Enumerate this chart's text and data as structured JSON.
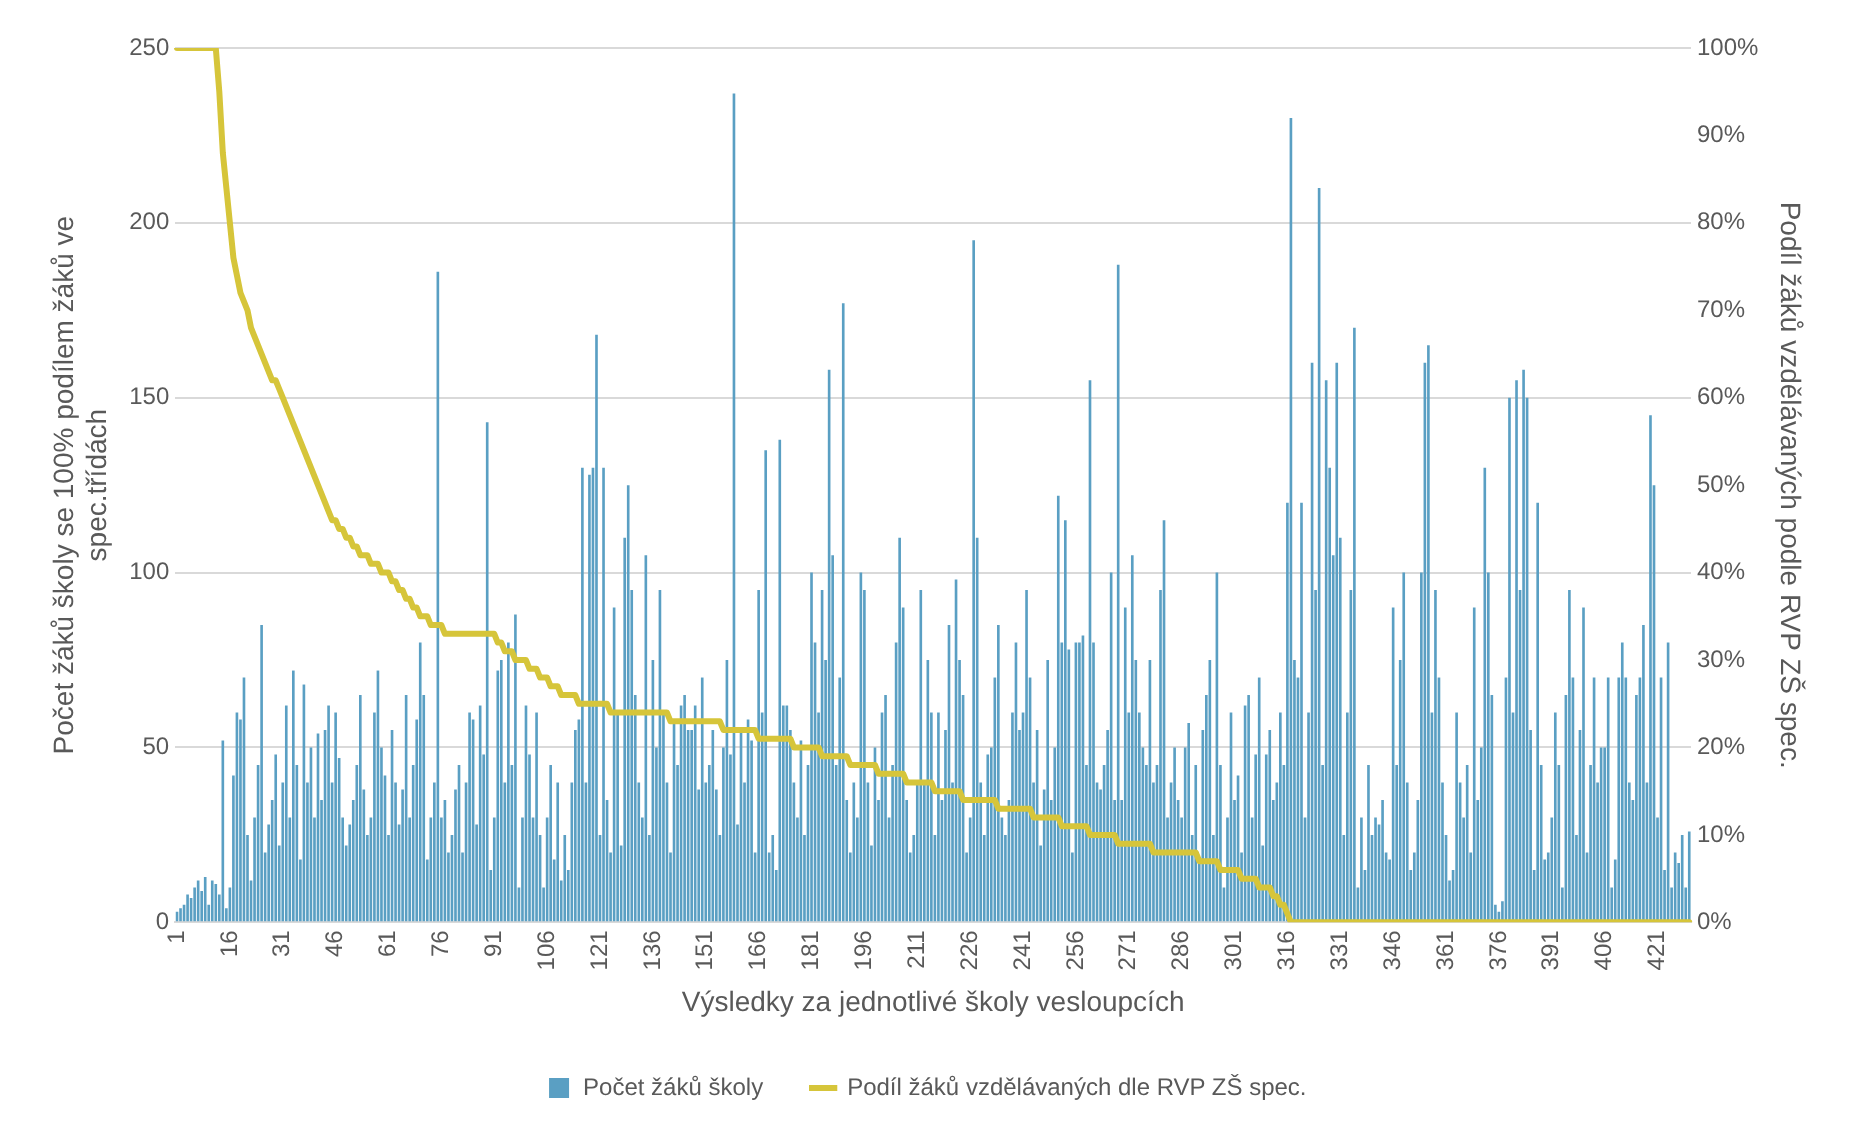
{
  "chart_data": {
    "type": "bar",
    "xlabel": "Výsledky za jednotlivé školy vesloupcích",
    "ylabel": "Počet žáků školy se 100% podílem žáků ve spec.třídách",
    "y2label": "Podíl žáků vzdělávaných podle RVP ZŠ spec.",
    "categories": [
      "1",
      null,
      null,
      null,
      null,
      null,
      null,
      null,
      null,
      null,
      null,
      null,
      null,
      null,
      null,
      "16",
      null,
      null,
      null,
      null,
      null,
      null,
      null,
      null,
      null,
      null,
      null,
      null,
      null,
      null,
      "31",
      null,
      null,
      null,
      null,
      null,
      null,
      null,
      null,
      null,
      null,
      null,
      null,
      null,
      null,
      "46",
      null,
      null,
      null,
      null,
      null,
      null,
      null,
      null,
      null,
      null,
      null,
      null,
      null,
      null,
      "61",
      null,
      null,
      null,
      null,
      null,
      null,
      null,
      null,
      null,
      null,
      null,
      null,
      null,
      null,
      "76",
      null,
      null,
      null,
      null,
      null,
      null,
      null,
      null,
      null,
      null,
      null,
      null,
      null,
      null,
      "91",
      null,
      null,
      null,
      null,
      null,
      null,
      null,
      null,
      null,
      null,
      null,
      null,
      null,
      null,
      "106",
      null,
      null,
      null,
      null,
      null,
      null,
      null,
      null,
      null,
      null,
      null,
      null,
      null,
      null,
      "121",
      null,
      null,
      null,
      null,
      null,
      null,
      null,
      null,
      null,
      null,
      null,
      null,
      null,
      null,
      "136",
      null,
      null,
      null,
      null,
      null,
      null,
      null,
      null,
      null,
      null,
      null,
      null,
      null,
      null,
      "151",
      null,
      null,
      null,
      null,
      null,
      null,
      null,
      null,
      null,
      null,
      null,
      null,
      null,
      null,
      "166",
      null,
      null,
      null,
      null,
      null,
      null,
      null,
      null,
      null,
      null,
      null,
      null,
      null,
      null,
      "181",
      null,
      null,
      null,
      null,
      null,
      null,
      null,
      null,
      null,
      null,
      null,
      null,
      null,
      null,
      "196",
      null,
      null,
      null,
      null,
      null,
      null,
      null,
      null,
      null,
      null,
      null,
      null,
      null,
      null,
      "211",
      null,
      null,
      null,
      null,
      null,
      null,
      null,
      null,
      null,
      null,
      null,
      null,
      null,
      null,
      "226",
      null,
      null,
      null,
      null,
      null,
      null,
      null,
      null,
      null,
      null,
      null,
      null,
      null,
      null,
      "241",
      null,
      null,
      null,
      null,
      null,
      null,
      null,
      null,
      null,
      null,
      null,
      null,
      null,
      null,
      "256",
      null,
      null,
      null,
      null,
      null,
      null,
      null,
      null,
      null,
      null,
      null,
      null,
      null,
      null,
      "271",
      null,
      null,
      null,
      null,
      null,
      null,
      null,
      null,
      null,
      null,
      null,
      null,
      null,
      null,
      "286",
      null,
      null,
      null,
      null,
      null,
      null,
      null,
      null,
      null,
      null,
      null,
      null,
      null,
      null,
      "301",
      null,
      null,
      null,
      null,
      null,
      null,
      null,
      null,
      null,
      null,
      null,
      null,
      null,
      null,
      "316",
      null,
      null,
      null,
      null,
      null,
      null,
      null,
      null,
      null,
      null,
      null,
      null,
      null,
      null,
      "331",
      null,
      null,
      null,
      null,
      null,
      null,
      null,
      null,
      null,
      null,
      null,
      null,
      null,
      null,
      "346",
      null,
      null,
      null,
      null,
      null,
      null,
      null,
      null,
      null,
      null,
      null,
      null,
      null,
      null,
      "361",
      null,
      null,
      null,
      null,
      null,
      null,
      null,
      null,
      null,
      null,
      null,
      null,
      null,
      null,
      "376",
      null,
      null,
      null,
      null,
      null,
      null,
      null,
      null,
      null,
      null,
      null,
      null,
      null,
      null,
      "391",
      null,
      null,
      null,
      null,
      null,
      null,
      null,
      null,
      null,
      null,
      null,
      null,
      null,
      null,
      "406",
      null,
      null,
      null,
      null,
      null,
      null,
      null,
      null,
      null,
      null,
      null,
      null,
      null,
      null,
      "421",
      null,
      null,
      null,
      null,
      null,
      null,
      null,
      null,
      null
    ],
    "series": [
      {
        "name": "Počet žáků školy",
        "color": "#5a9fc3",
        "values": [
          3,
          4,
          5,
          8,
          7,
          10,
          12,
          9,
          13,
          5,
          12,
          11,
          8,
          52,
          4,
          10,
          42,
          60,
          58,
          70,
          25,
          12,
          30,
          45,
          85,
          20,
          28,
          35,
          48,
          22,
          40,
          62,
          30,
          72,
          45,
          18,
          68,
          40,
          50,
          30,
          54,
          35,
          55,
          62,
          40,
          60,
          47,
          30,
          22,
          28,
          35,
          45,
          65,
          38,
          25,
          30,
          60,
          72,
          50,
          42,
          25,
          55,
          40,
          28,
          38,
          65,
          30,
          45,
          58,
          80,
          65,
          18,
          30,
          40,
          186,
          30,
          35,
          20,
          25,
          38,
          45,
          20,
          40,
          60,
          58,
          28,
          62,
          48,
          143,
          15,
          30,
          72,
          75,
          40,
          80,
          45,
          88,
          10,
          30,
          62,
          48,
          30,
          60,
          25,
          10,
          30,
          45,
          18,
          40,
          12,
          25,
          15,
          40,
          55,
          58,
          130,
          40,
          128,
          130,
          168,
          25,
          130,
          35,
          20,
          90,
          60,
          22,
          110,
          125,
          95,
          65,
          40,
          30,
          105,
          25,
          75,
          50,
          95,
          60,
          40,
          20,
          58,
          45,
          62,
          65,
          55,
          55,
          62,
          38,
          70,
          40,
          45,
          55,
          38,
          25,
          50,
          75,
          48,
          237,
          28,
          55,
          40,
          58,
          52,
          20,
          95,
          60,
          135,
          20,
          25,
          15,
          138,
          62,
          62,
          55,
          40,
          30,
          52,
          25,
          45,
          100,
          80,
          60,
          95,
          75,
          158,
          105,
          45,
          70,
          177,
          35,
          20,
          40,
          30,
          100,
          95,
          40,
          22,
          50,
          35,
          60,
          65,
          30,
          45,
          80,
          110,
          90,
          35,
          20,
          25,
          40,
          95,
          40,
          75,
          60,
          25,
          60,
          35,
          55,
          85,
          40,
          98,
          75,
          65,
          20,
          30,
          195,
          110,
          40,
          25,
          48,
          50,
          70,
          85,
          30,
          25,
          35,
          60,
          80,
          55,
          60,
          95,
          70,
          40,
          55,
          22,
          38,
          75,
          35,
          50,
          122,
          80,
          115,
          78,
          20,
          80,
          80,
          82,
          45,
          155,
          80,
          40,
          38,
          45,
          55,
          100,
          35,
          188,
          35,
          90,
          60,
          105,
          75,
          60,
          50,
          45,
          75,
          40,
          45,
          95,
          115,
          30,
          40,
          50,
          35,
          30,
          50,
          57,
          25,
          45,
          18,
          55,
          65,
          75,
          25,
          100,
          45,
          10,
          30,
          60,
          35,
          42,
          20,
          62,
          65,
          30,
          48,
          70,
          22,
          48,
          55,
          35,
          40,
          60,
          45,
          120,
          230,
          75,
          70,
          120,
          30,
          60,
          160,
          95,
          210,
          45,
          155,
          130,
          105,
          160,
          110,
          25,
          60,
          95,
          170,
          10,
          30,
          15,
          45,
          25,
          30,
          28,
          35,
          20,
          18,
          90,
          45,
          75,
          100,
          40,
          15,
          20,
          35,
          100,
          160,
          165,
          60,
          95,
          70,
          40,
          25,
          12,
          15,
          60,
          40,
          30,
          45,
          20,
          90,
          35,
          50,
          130,
          100,
          65,
          5,
          3,
          6,
          70,
          150,
          60,
          155,
          95,
          158,
          150,
          55,
          15,
          120,
          45,
          18,
          20,
          30,
          60,
          45,
          10,
          65,
          95,
          70,
          25,
          55,
          90,
          20,
          45,
          70,
          40,
          50,
          50,
          70,
          10,
          18,
          70,
          80,
          70,
          40,
          35,
          65,
          70,
          85,
          40,
          145,
          125,
          30,
          70,
          15,
          80,
          10,
          20,
          17,
          25,
          10,
          26
        ]
      },
      {
        "name": "Podíl žáků vzdělávaných dle RVP ZŠ spec.",
        "type": "line",
        "axis": "y2",
        "color": "#d6c53a",
        "values": [
          100,
          100,
          100,
          100,
          100,
          100,
          100,
          100,
          100,
          100,
          100,
          100,
          95,
          88,
          84,
          80,
          76,
          74,
          72,
          71,
          70,
          68,
          67,
          66,
          65,
          64,
          63,
          62,
          62,
          61,
          60,
          59,
          58,
          57,
          56,
          55,
          54,
          53,
          52,
          51,
          50,
          49,
          48,
          47,
          46,
          46,
          45,
          45,
          44,
          44,
          43,
          43,
          42,
          42,
          42,
          41,
          41,
          41,
          40,
          40,
          40,
          39,
          39,
          38,
          38,
          37,
          37,
          36,
          36,
          35,
          35,
          35,
          34,
          34,
          34,
          34,
          33,
          33,
          33,
          33,
          33,
          33,
          33,
          33,
          33,
          33,
          33,
          33,
          33,
          33,
          33,
          32,
          32,
          31,
          31,
          31,
          30,
          30,
          30,
          30,
          29,
          29,
          29,
          28,
          28,
          28,
          27,
          27,
          27,
          26,
          26,
          26,
          26,
          26,
          25,
          25,
          25,
          25,
          25,
          25,
          25,
          25,
          25,
          24,
          24,
          24,
          24,
          24,
          24,
          24,
          24,
          24,
          24,
          24,
          24,
          24,
          24,
          24,
          24,
          24,
          23,
          23,
          23,
          23,
          23,
          23,
          23,
          23,
          23,
          23,
          23,
          23,
          23,
          23,
          23,
          22,
          22,
          22,
          22,
          22,
          22,
          22,
          22,
          22,
          22,
          21,
          21,
          21,
          21,
          21,
          21,
          21,
          21,
          21,
          21,
          20,
          20,
          20,
          20,
          20,
          20,
          20,
          20,
          19,
          19,
          19,
          19,
          19,
          19,
          19,
          19,
          18,
          18,
          18,
          18,
          18,
          18,
          18,
          18,
          17,
          17,
          17,
          17,
          17,
          17,
          17,
          17,
          16,
          16,
          16,
          16,
          16,
          16,
          16,
          16,
          15,
          15,
          15,
          15,
          15,
          15,
          15,
          15,
          14,
          14,
          14,
          14,
          14,
          14,
          14,
          14,
          14,
          14,
          13,
          13,
          13,
          13,
          13,
          13,
          13,
          13,
          13,
          13,
          12,
          12,
          12,
          12,
          12,
          12,
          12,
          12,
          11,
          11,
          11,
          11,
          11,
          11,
          11,
          11,
          10,
          10,
          10,
          10,
          10,
          10,
          10,
          10,
          9,
          9,
          9,
          9,
          9,
          9,
          9,
          9,
          9,
          9,
          8,
          8,
          8,
          8,
          8,
          8,
          8,
          8,
          8,
          8,
          8,
          8,
          8,
          7,
          7,
          7,
          7,
          7,
          7,
          6,
          6,
          6,
          6,
          6,
          6,
          5,
          5,
          5,
          5,
          5,
          4,
          4,
          4,
          4,
          3,
          3,
          2,
          2,
          1,
          0,
          0,
          0,
          0,
          0,
          0,
          0,
          0,
          0,
          0,
          0,
          0,
          0,
          0,
          0,
          0,
          0,
          0,
          0,
          0,
          0,
          0,
          0,
          0,
          0,
          0,
          0,
          0,
          0,
          0,
          0,
          0,
          0,
          0,
          0,
          0,
          0,
          0,
          0,
          0,
          0,
          0,
          0,
          0,
          0,
          0,
          0,
          0,
          0,
          0,
          0,
          0,
          0,
          0,
          0,
          0,
          0,
          0,
          0,
          0,
          0,
          0,
          0,
          0,
          0,
          0,
          0,
          0,
          0,
          0,
          0,
          0,
          0,
          0,
          0,
          0,
          0,
          0,
          0,
          0,
          0,
          0,
          0,
          0,
          0,
          0,
          0,
          0,
          0,
          0,
          0,
          0,
          0,
          0,
          0,
          0,
          0,
          0,
          0,
          0,
          0,
          0,
          0,
          0,
          0,
          0,
          0,
          0,
          0,
          0,
          0,
          0,
          0,
          0
        ]
      }
    ],
    "ylim": [
      0,
      250
    ],
    "yticks": [
      0,
      50,
      100,
      150,
      200,
      250
    ],
    "y2lim": [
      0,
      100
    ],
    "y2ticks": [
      {
        "value": 0,
        "label": "0%"
      },
      {
        "value": 10,
        "label": "10%"
      },
      {
        "value": 20,
        "label": "20%"
      },
      {
        "value": 30,
        "label": "30%"
      },
      {
        "value": 40,
        "label": "40%"
      },
      {
        "value": 50,
        "label": "50%"
      },
      {
        "value": 60,
        "label": "60%"
      },
      {
        "value": 70,
        "label": "70%"
      },
      {
        "value": 80,
        "label": "80%"
      },
      {
        "value": 90,
        "label": "90%"
      },
      {
        "value": 100,
        "label": "100%"
      }
    ],
    "grid": "y",
    "legend": "bottom",
    "marker": "none"
  }
}
